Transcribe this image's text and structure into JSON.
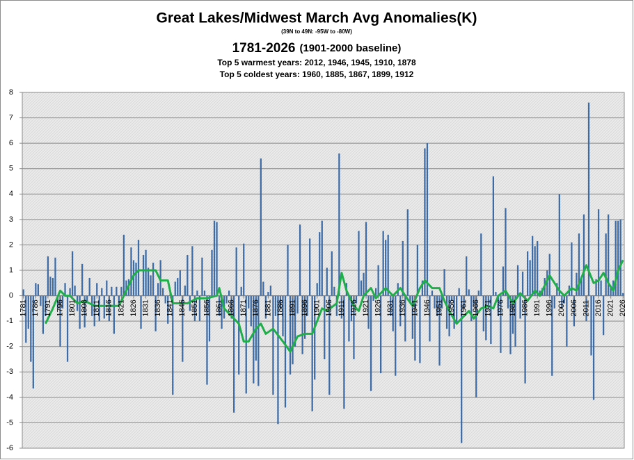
{
  "chart_data": {
    "type": "bar",
    "title": "Great Lakes/Midwest March Avg Anomalies(K)",
    "subtitle": "(39N to 49N: -95W  to  -80W)",
    "period": "1781-2026",
    "baseline": "(1901-2000 baseline)",
    "warmest": "Top 5 warmest years: 2012,  1946,  1945,  1910,  1878",
    "coldest": "Top 5 coldest years: 1960, 1885, 1867, 1899, 1912",
    "xlim": [
      1780.5,
      2026.5
    ],
    "ylim": [
      -6,
      8
    ],
    "yticks": [
      -6,
      -5,
      -4,
      -3,
      -2,
      -1,
      0,
      1,
      2,
      3,
      4,
      5,
      6,
      7,
      8
    ],
    "xticks": [
      1781,
      1786,
      1791,
      1796,
      1801,
      1806,
      1811,
      1816,
      1821,
      1826,
      1831,
      1836,
      1841,
      1846,
      1851,
      1856,
      1861,
      1866,
      1871,
      1876,
      1881,
      1886,
      1891,
      1896,
      1901,
      1906,
      1911,
      1916,
      1921,
      1926,
      1931,
      1936,
      1941,
      1946,
      1951,
      1956,
      1961,
      1966,
      1971,
      1976,
      1981,
      1986,
      1991,
      1996,
      2001,
      2006,
      2011,
      2016,
      2021,
      2026
    ],
    "grid": true,
    "series": [
      {
        "type": "bar",
        "color": "#3d6ba6",
        "x": [
          1781,
          1782,
          1783,
          1784,
          1785,
          1786,
          1787,
          1788,
          1789,
          1790,
          1791,
          1792,
          1793,
          1794,
          1795,
          1796,
          1797,
          1798,
          1799,
          1800,
          1801,
          1802,
          1803,
          1804,
          1805,
          1806,
          1807,
          1808,
          1809,
          1810,
          1811,
          1812,
          1813,
          1814,
          1815,
          1816,
          1817,
          1818,
          1819,
          1820,
          1821,
          1822,
          1823,
          1824,
          1825,
          1826,
          1827,
          1828,
          1829,
          1830,
          1831,
          1832,
          1833,
          1834,
          1835,
          1836,
          1837,
          1838,
          1839,
          1840,
          1841,
          1842,
          1843,
          1844,
          1845,
          1846,
          1847,
          1848,
          1849,
          1850,
          1851,
          1852,
          1853,
          1854,
          1855,
          1856,
          1857,
          1858,
          1859,
          1860,
          1861,
          1862,
          1863,
          1864,
          1865,
          1866,
          1867,
          1868,
          1869,
          1870,
          1871,
          1872,
          1873,
          1874,
          1875,
          1876,
          1877,
          1878,
          1879,
          1880,
          1881,
          1882,
          1883,
          1884,
          1885,
          1886,
          1887,
          1888,
          1889,
          1890,
          1891,
          1892,
          1893,
          1894,
          1895,
          1896,
          1897,
          1898,
          1899,
          1900,
          1901,
          1902,
          1903,
          1904,
          1905,
          1906,
          1907,
          1908,
          1909,
          1910,
          1911,
          1912,
          1913,
          1914,
          1915,
          1916,
          1917,
          1918,
          1919,
          1920,
          1921,
          1922,
          1923,
          1924,
          1925,
          1926,
          1927,
          1928,
          1929,
          1930,
          1931,
          1932,
          1933,
          1934,
          1935,
          1936,
          1937,
          1938,
          1939,
          1940,
          1941,
          1942,
          1943,
          1944,
          1945,
          1946,
          1947,
          1948,
          1949,
          1950,
          1951,
          1952,
          1953,
          1954,
          1955,
          1956,
          1957,
          1958,
          1959,
          1960,
          1961,
          1962,
          1963,
          1964,
          1965,
          1966,
          1967,
          1968,
          1969,
          1970,
          1971,
          1972,
          1973,
          1974,
          1975,
          1976,
          1977,
          1978,
          1979,
          1980,
          1981,
          1982,
          1983,
          1984,
          1985,
          1986,
          1987,
          1988,
          1989,
          1990,
          1991,
          1992,
          1993,
          1994,
          1995,
          1996,
          1997,
          1998,
          1999,
          2000,
          2001,
          2002,
          2003,
          2004,
          2005,
          2006,
          2007,
          2008,
          2009,
          2010,
          2011,
          2012,
          2013,
          2014,
          2015,
          2016,
          2017,
          2018,
          2019,
          2020,
          2021,
          2022,
          2023,
          2024,
          2025,
          2026
        ],
        "values": [
          0.25,
          -1.85,
          -1.3,
          -2.6,
          -3.65,
          0.5,
          0.45,
          -0.4,
          -1.5,
          -0.8,
          1.55,
          0.75,
          0.7,
          1.5,
          -0.5,
          -2.0,
          -0.5,
          0.5,
          -2.6,
          0.3,
          1.75,
          0.4,
          -0.6,
          -1.3,
          1.25,
          -1.25,
          -0.3,
          0.7,
          -0.8,
          -1.2,
          0.5,
          -1.0,
          0.3,
          -0.9,
          0.6,
          -1.0,
          0.35,
          -1.5,
          0.35,
          -0.4,
          0.35,
          2.4,
          0.6,
          0.65,
          1.9,
          1.4,
          1.3,
          2.2,
          -1.3,
          1.6,
          1.8,
          1.1,
          0.8,
          1.3,
          -1.4,
          0.5,
          1.4,
          0.3,
          -0.3,
          -1.1,
          0.2,
          -3.9,
          0.55,
          0.7,
          1.0,
          -2.6,
          0.4,
          1.6,
          -0.6,
          1.95,
          -1.0,
          0.2,
          -1.0,
          1.5,
          0.2,
          -3.5,
          -1.8,
          1.8,
          2.95,
          2.9,
          -0.8,
          -1.3,
          -0.9,
          -0.3,
          0.2,
          -0.9,
          -4.6,
          1.9,
          -3.1,
          0.35,
          2.05,
          -3.85,
          -0.5,
          -1.2,
          -3.45,
          -2.55,
          -3.55,
          5.4,
          0.55,
          -0.9,
          0.15,
          0.4,
          -3.9,
          -0.8,
          -5.05,
          -0.5,
          -1.6,
          -4.4,
          2.0,
          -3.1,
          -2.7,
          -2.0,
          -0.7,
          2.8,
          -2.3,
          -1.7,
          -0.8,
          2.25,
          -4.55,
          -3.3,
          0.5,
          2.5,
          2.95,
          -2.5,
          1.1,
          -3.9,
          1.75,
          0.35,
          -0.8,
          5.6,
          -0.9,
          -4.45,
          0.5,
          -1.8,
          -1.0,
          -2.5,
          -0.3,
          2.55,
          0.6,
          0.9,
          2.9,
          -1.3,
          -3.75,
          -0.2,
          0.3,
          1.2,
          -3.05,
          2.55,
          2.2,
          2.4,
          -0.8,
          -1.4,
          -3.15,
          0.5,
          -1.2,
          2.15,
          -1.8,
          3.4,
          -0.3,
          -1.7,
          -2.55,
          2.0,
          -2.65,
          0.6,
          5.8,
          6.0,
          -1.8,
          0.2,
          -0.5,
          -0.8,
          -2.75,
          -0.5,
          1.05,
          -1.3,
          -1.6,
          -0.2,
          -1.3,
          -1.1,
          0.3,
          -5.8,
          -0.5,
          1.55,
          0.25,
          -1.0,
          -0.4,
          -4.0,
          0.2,
          2.45,
          -1.4,
          -1.75,
          -0.5,
          -1.9,
          4.7,
          0.15,
          -0.8,
          -2.25,
          1.15,
          3.45,
          -0.5,
          -2.3,
          -1.5,
          -2.0,
          1.2,
          -0.9,
          0.95,
          -3.45,
          1.75,
          1.4,
          2.35,
          1.95,
          2.15,
          0.2,
          0.3,
          0.7,
          1.0,
          1.65,
          -3.15,
          -0.5,
          0.5,
          4.0,
          -0.5,
          -0.3,
          -2.0,
          0.4,
          2.1,
          -1.2,
          0.9,
          2.45,
          0.7,
          3.2,
          -1.0,
          7.6,
          -2.35,
          -4.1,
          0.65,
          3.4,
          0.6,
          -1.55,
          2.45,
          3.2,
          0.4,
          0.6,
          2.95,
          2.95,
          3.0,
          0.1
        ]
      },
      {
        "type": "line",
        "color": "#1fae4a",
        "x": [
          1790,
          1793,
          1796,
          1798,
          1800,
          1803,
          1806,
          1810,
          1815,
          1820,
          1823,
          1826,
          1828,
          1831,
          1835,
          1837,
          1840,
          1842,
          1845,
          1848,
          1852,
          1856,
          1860,
          1861,
          1863,
          1866,
          1869,
          1871,
          1873,
          1876,
          1878,
          1880,
          1883,
          1887,
          1890,
          1893,
          1896,
          1899,
          1901,
          1903,
          1905,
          1909,
          1911,
          1913,
          1916,
          1918,
          1920,
          1923,
          1925,
          1929,
          1932,
          1935,
          1937,
          1940,
          1943,
          1945,
          1948,
          1951,
          1953,
          1955,
          1958,
          1961,
          1963,
          1965,
          1968,
          1971,
          1973,
          1975,
          1978,
          1981,
          1984,
          1987,
          1990,
          1992,
          1994,
          1996,
          1998,
          2000,
          2002,
          2005,
          2007,
          2009,
          2011,
          2014,
          2016,
          2018,
          2020,
          2022,
          2024,
          2026
        ],
        "values": [
          -1.1,
          -0.5,
          0.2,
          0.0,
          0.0,
          -0.3,
          -0.2,
          -0.4,
          -0.4,
          -0.4,
          0.2,
          0.8,
          1.0,
          1.0,
          1.0,
          0.6,
          0.6,
          -0.3,
          -0.3,
          -0.3,
          -0.1,
          -0.1,
          0.0,
          0.3,
          -0.5,
          -0.8,
          -1.1,
          -1.8,
          -1.8,
          -1.3,
          -1.1,
          -1.5,
          -1.3,
          -1.8,
          -2.2,
          -1.6,
          -1.5,
          -1.5,
          -1.0,
          -0.5,
          -0.6,
          -0.3,
          0.9,
          0.2,
          -0.4,
          -0.6,
          0.0,
          0.3,
          -0.1,
          0.3,
          0.0,
          0.3,
          0.0,
          -0.4,
          0.3,
          0.6,
          0.3,
          0.3,
          -0.2,
          -0.6,
          -1.1,
          -0.8,
          -0.6,
          -0.9,
          -0.5,
          -0.4,
          -0.5,
          0.0,
          0.2,
          -0.3,
          0.1,
          -0.2,
          0.2,
          0.0,
          0.4,
          0.8,
          0.5,
          0.2,
          0.0,
          0.3,
          0.2,
          0.7,
          1.2,
          0.5,
          0.6,
          0.9,
          0.5,
          0.2,
          1.0,
          1.4
        ]
      }
    ]
  }
}
